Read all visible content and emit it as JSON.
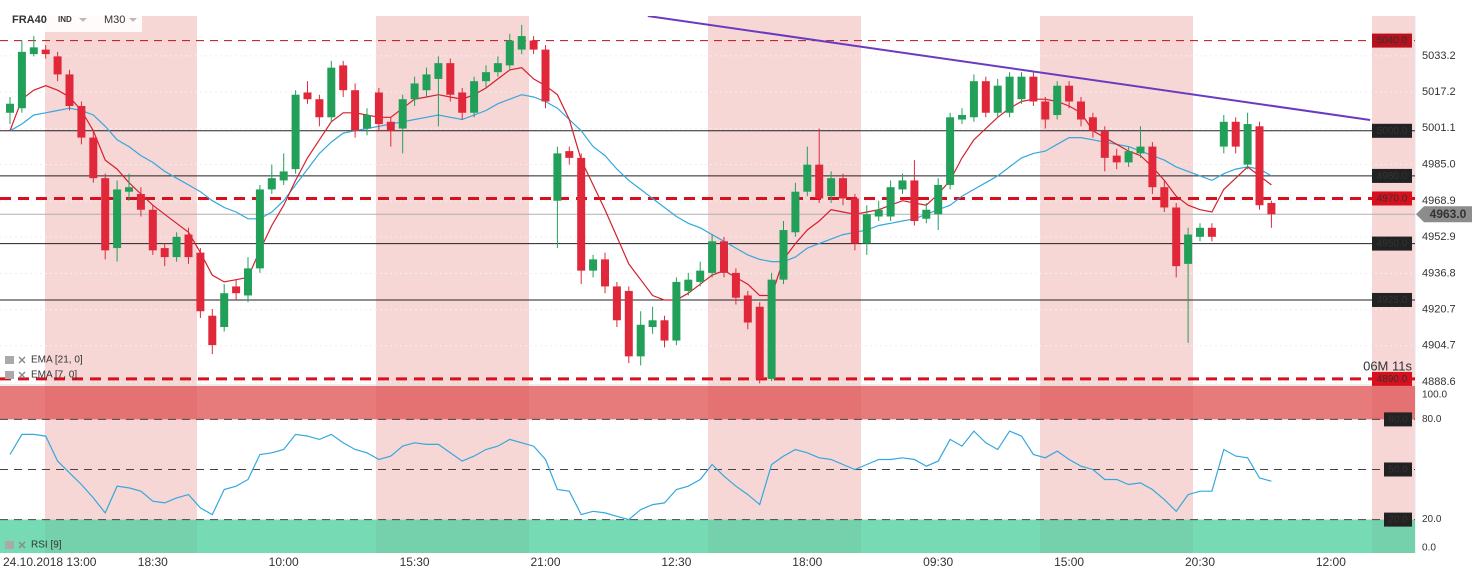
{
  "header": {
    "symbol": "FRA40",
    "market": "IND",
    "interval": "M30"
  },
  "timer": "06M 11s",
  "chart_data": [
    {
      "type": "candlestick",
      "categories": [
        null,
        "24.10.2018 13:00",
        null,
        null,
        null,
        null,
        null,
        null,
        null,
        null,
        null,
        null,
        "18:30",
        null,
        null,
        null,
        null,
        null,
        null,
        null,
        null,
        null,
        null,
        "10:00",
        null,
        null,
        null,
        null,
        null,
        null,
        null,
        null,
        null,
        null,
        "15:30",
        null,
        null,
        null,
        null,
        null,
        null,
        null,
        null,
        null,
        null,
        "21:00",
        null,
        null,
        null,
        null,
        null,
        null,
        null,
        null,
        null,
        null,
        "12:30",
        null,
        null,
        null,
        null,
        null,
        null,
        null,
        null,
        null,
        null,
        "18:00",
        null,
        null,
        null,
        null,
        null,
        null,
        null,
        null,
        null,
        null,
        "09:30",
        null,
        null,
        null,
        null,
        null,
        null,
        null,
        null,
        null,
        null,
        "15:00",
        null,
        null,
        null,
        null,
        null,
        null,
        null,
        null,
        null,
        null,
        "20:30",
        null,
        null,
        null,
        null,
        null,
        null,
        null,
        null,
        null,
        null,
        "12:00"
      ],
      "open": [
        5008,
        5010,
        5034,
        5036,
        5033,
        5025,
        5011,
        4997,
        4979,
        4948,
        4973,
        4972,
        4965,
        4948,
        4944,
        4954,
        4946,
        4918,
        4913,
        4931,
        4927,
        4939,
        4974,
        4978,
        4983,
        5017,
        5014,
        5006,
        5029,
        5018,
        5001,
        5017,
        5004,
        5001,
        5014,
        5018,
        5023,
        5030,
        5017,
        5008,
        5022,
        5026,
        5029,
        5036,
        5040,
        5036,
        4969,
        4991,
        4988,
        4938,
        4943,
        4931,
        4929,
        4900,
        4913,
        4916,
        4907,
        4929,
        4933,
        4937,
        4951,
        4937,
        4927,
        4922,
        4890,
        4934,
        4955,
        4973,
        4985,
        4971,
        4979,
        4970,
        4950,
        4962,
        4962,
        4974,
        4978,
        4961,
        4963,
        4976,
        5005,
        5006,
        5022,
        5008,
        5008,
        5014,
        5024,
        5013,
        5007,
        5020,
        5013,
        5006,
        5000,
        4989,
        4986,
        4990,
        4993,
        4975,
        4966,
        4941,
        4953,
        4957,
        4993,
        5004,
        4985,
        5002,
        4968,
        null,
        null,
        null,
        null,
        null
      ],
      "high": [
        5015,
        5040,
        5042,
        5038,
        5035,
        5027,
        5013,
        5000,
        4981,
        4978,
        4981,
        4975,
        4967,
        4950,
        4955,
        4957,
        4948,
        4921,
        4932,
        4934,
        4944,
        4976,
        4985,
        4990,
        5018,
        5022,
        5016,
        5031,
        5031,
        5021,
        5010,
        5019,
        5006,
        5016,
        5024,
        5028,
        5033,
        5032,
        5019,
        5024,
        5029,
        5033,
        5043,
        5047,
        5042,
        5038,
        4993,
        4993,
        4990,
        4945,
        4946,
        4933,
        4931,
        4920,
        4922,
        4918,
        4935,
        4937,
        4942,
        4954,
        4953,
        4939,
        4929,
        4924,
        4937,
        4960,
        4977,
        4993,
        5001,
        4982,
        4981,
        4972,
        4967,
        4969,
        4978,
        4981,
        4987,
        4968,
        4979,
        5008,
        5010,
        5025,
        5024,
        5023,
        5026,
        5026,
        5026,
        5015,
        5022,
        5022,
        5015,
        5008,
        5002,
        4992,
        4993,
        5002,
        4995,
        4978,
        4968,
        4957,
        4959,
        4959,
        5007,
        5006,
        5008,
        5004,
        4969,
        null,
        null,
        null,
        null,
        null
      ],
      "low": [
        5003,
        5008,
        5033,
        5032,
        5022,
        5009,
        4994,
        4977,
        4943,
        4942,
        4969,
        4962,
        4945,
        4940,
        4942,
        4941,
        4917,
        4901,
        4911,
        4925,
        4924,
        4937,
        4972,
        4976,
        4981,
        5012,
        5002,
        5004,
        5015,
        4997,
        4998,
        5000,
        4993,
        4990,
        5011,
        5015,
        5002,
        5013,
        5005,
        5006,
        5019,
        5024,
        5027,
        5034,
        5034,
        5010,
        4948,
        4985,
        4932,
        4935,
        4928,
        4913,
        4897,
        4896,
        4910,
        4904,
        4905,
        4927,
        4931,
        4935,
        4935,
        4923,
        4912,
        4888,
        4889,
        4932,
        4953,
        4971,
        4968,
        4968,
        4967,
        4947,
        4945,
        4960,
        4960,
        4972,
        4958,
        4959,
        4956,
        4974,
        5003,
        5004,
        5006,
        5006,
        5006,
        5012,
        5011,
        5001,
        5005,
        5010,
        5002,
        4997,
        4982,
        4983,
        4984,
        4988,
        4972,
        4964,
        4935,
        4906,
        4951,
        4951,
        4990,
        4990,
        4983,
        4965,
        4957,
        null,
        null,
        null,
        null,
        null
      ],
      "close": [
        5012,
        5035,
        5037,
        5034,
        5025,
        5011,
        4997,
        4979,
        4947,
        4974,
        4975,
        4965,
        4947,
        4944,
        4953,
        4944,
        4920,
        4905,
        4928,
        4928,
        4939,
        4974,
        4979,
        4982,
        5016,
        5014,
        5006,
        5028,
        5018,
        5000,
        5007,
        5003,
        5000,
        5014,
        5021,
        5025,
        5030,
        5016,
        5008,
        5022,
        5026,
        5030,
        5040,
        5042,
        5036,
        5013,
        4990,
        4988,
        4938,
        4943,
        4931,
        4916,
        4900,
        4914,
        4916,
        4907,
        4933,
        4934,
        4938,
        4951,
        4937,
        4926,
        4915,
        4890,
        4934,
        4956,
        4973,
        4985,
        4970,
        4979,
        4970,
        4950,
        4963,
        4965,
        4975,
        4978,
        4960,
        4965,
        4976,
        5006,
        5007,
        5022,
        5008,
        5020,
        5024,
        5024,
        5013,
        5005,
        5020,
        5013,
        5005,
        5000,
        4988,
        4986,
        4991,
        4993,
        4975,
        4966,
        4940,
        4954,
        4957,
        4953,
        5004,
        4993,
        5003,
        4967,
        4963,
        null,
        null,
        null,
        null,
        null
      ],
      "up_color": "#22a05a",
      "down_color": "#e0283a",
      "series": [
        {
          "name": "EMA [21, 0]",
          "color": "#35a8de",
          "values": [
            5000,
            5003,
            5007,
            5008,
            5009,
            5010,
            5009,
            5007,
            5002,
            4996,
            4993,
            4989,
            4986,
            4982,
            4979,
            4976,
            4973,
            4969,
            4966,
            4964,
            4961,
            4961,
            4964,
            4969,
            4976,
            4983,
            4990,
            4995,
            4999,
            5000,
            5001,
            5002,
            5003,
            5004,
            5005,
            5006,
            5007,
            5006,
            5005,
            5007,
            5009,
            5012,
            5014,
            5016,
            5015,
            5013,
            5010,
            5005,
            5000,
            4993,
            4989,
            4983,
            4978,
            4974,
            4970,
            4966,
            4962,
            4959,
            4957,
            4954,
            4951,
            4948,
            4945,
            4943,
            4942,
            4942,
            4944,
            4948,
            4950,
            4952,
            4954,
            4955,
            4956,
            4958,
            4959,
            4960,
            4961,
            4963,
            4965,
            4967,
            4971,
            4974,
            4977,
            4980,
            4984,
            4988,
            4990,
            4991,
            4994,
            4997,
            4997,
            4996,
            4995,
            4994,
            4993,
            4991,
            4989,
            4987,
            4984,
            4982,
            4980,
            4978,
            4981,
            4983,
            4984,
            4983,
            4980,
            null,
            null,
            null,
            null,
            null
          ]
        },
        {
          "name": "EMA [7, 0]",
          "color": "#d4202c",
          "values": [
            5000,
            5014,
            5018,
            5020,
            5018,
            5015,
            5009,
            5000,
            4987,
            4983,
            4977,
            4972,
            4967,
            4963,
            4959,
            4955,
            4946,
            4936,
            4933,
            4934,
            4935,
            4947,
            4958,
            4967,
            4978,
            4988,
            4996,
            5004,
            5008,
            5008,
            5007,
            5006,
            5006,
            5010,
            5014,
            5015,
            5016,
            5015,
            5014,
            5016,
            5019,
            5023,
            5027,
            5028,
            5023,
            5020,
            5016,
            5005,
            4987,
            4976,
            4965,
            4953,
            4941,
            4934,
            4927,
            4925,
            4925,
            4928,
            4932,
            4936,
            4938,
            4935,
            4932,
            4927,
            4927,
            4943,
            4950,
            4956,
            4960,
            4965,
            4964,
            4963,
            4964,
            4965,
            4967,
            4969,
            4968,
            4967,
            4972,
            4978,
            4988,
            4996,
            5001,
            5006,
            5010,
            5013,
            5014,
            5014,
            5013,
            5011,
            5008,
            5000,
            4997,
            4994,
            4991,
            4989,
            4984,
            4978,
            4971,
            4967,
            4965,
            4964,
            4974,
            4979,
            4984,
            4980,
            4976,
            null,
            null,
            null,
            null,
            null
          ]
        }
      ],
      "ylim": [
        4887.3,
        5050.9
      ],
      "yticks": [
        5033.2,
        5017.2,
        5001.1,
        {
          "value": 4985,
          "label": "4985.0"
        },
        4968.9,
        4952.9,
        4936.8,
        4920.7,
        4904.7,
        4888.6
      ],
      "grid": true,
      "levels": [
        {
          "value": 5040,
          "label": "5040.0",
          "color": "#b8101c",
          "style": "dashed"
        },
        {
          "value": 5000,
          "label": "5000.0",
          "color": "#222222",
          "style": "solid"
        },
        {
          "value": 4980,
          "label": "4980.0",
          "color": "#222222",
          "style": "solid"
        },
        {
          "value": 4970,
          "label": "4970.0",
          "color": "#d8101e",
          "style": "thick-dashed"
        },
        {
          "value": 4950,
          "label": "4950.0",
          "color": "#222222",
          "style": "solid"
        },
        {
          "value": 4925,
          "label": "4925.0",
          "color": "#222222",
          "style": "solid"
        },
        {
          "value": 4890,
          "label": "4890.0",
          "color": "#d8101e",
          "style": "thick-dashed"
        }
      ],
      "current_price": {
        "value": 4963,
        "label": "4963.0",
        "color": "#8c8c8c"
      },
      "trendline": {
        "color": "#6a3bbf",
        "from": {
          "x": 53.6,
          "y": 5050.9
        },
        "to": {
          "x": 114.3,
          "y": 5004.8
        }
      }
    },
    {
      "type": "line",
      "name": "RSI [9]",
      "color": "#35a8de",
      "values": [
        59,
        71,
        71,
        70,
        55,
        48,
        41,
        33,
        24,
        40,
        39,
        37,
        31,
        30,
        33,
        35,
        27,
        23,
        38,
        40,
        44,
        59,
        60,
        62,
        71,
        70,
        68,
        71,
        66,
        62,
        60,
        56,
        58,
        64,
        66,
        65,
        65,
        60,
        55,
        58,
        62,
        64,
        68,
        66,
        64,
        56,
        38,
        37,
        23,
        25,
        24,
        22,
        20,
        26,
        29,
        30,
        38,
        40,
        44,
        53,
        46,
        40,
        35,
        29,
        53,
        58,
        62,
        60,
        57,
        56,
        53,
        50,
        53,
        56,
        56,
        57,
        56,
        52,
        55,
        68,
        64,
        73,
        66,
        62,
        73,
        70,
        59,
        57,
        61,
        56,
        52,
        50,
        44,
        44,
        41,
        42,
        38,
        32,
        25,
        35,
        37,
        37,
        62,
        58,
        57,
        45,
        43,
        null,
        null,
        null,
        null,
        null
      ],
      "ylim": [
        0,
        100
      ],
      "yticks": [
        {
          "value": 100,
          "label": "100.0"
        },
        {
          "value": 80,
          "label": "80.0"
        },
        {
          "value": 20,
          "label": "20.0"
        },
        {
          "value": 0,
          "label": "0.0"
        }
      ],
      "levels": [
        {
          "value": 80,
          "label": "80.0"
        },
        {
          "value": 50,
          "label": "50.0"
        },
        {
          "value": 20,
          "label": "20.0"
        }
      ],
      "zones": [
        {
          "from": 80,
          "to": 100,
          "color": "#e05656"
        },
        {
          "from": 0,
          "to": 20,
          "color": "#4fcf9f"
        }
      ]
    }
  ]
}
